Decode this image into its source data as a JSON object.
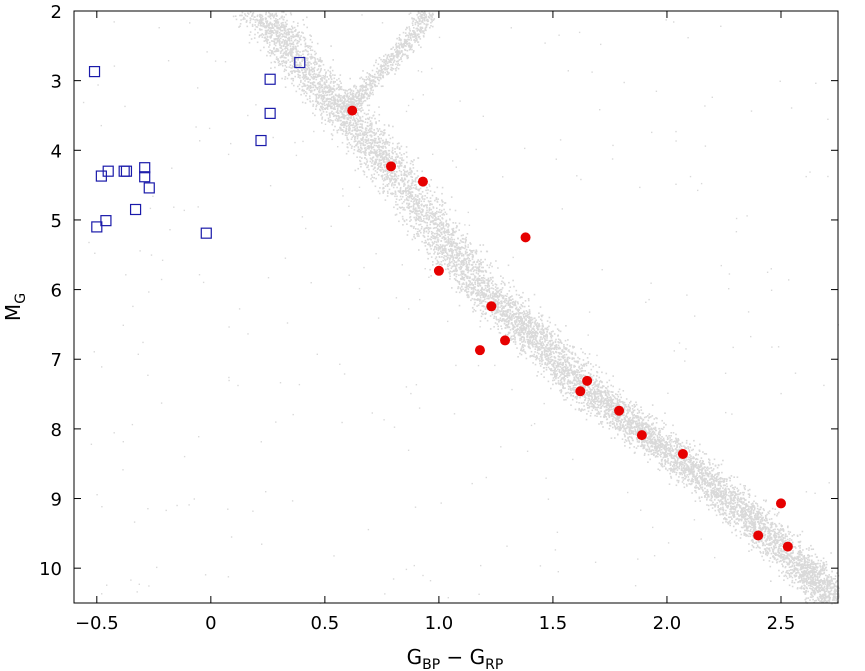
{
  "chart_data": {
    "type": "scatter",
    "xlabel": "G",
    "xlabel_sub_1": "BP",
    "xlabel_mid": " − G",
    "xlabel_sub_2": "RP",
    "ylabel": "M",
    "ylabel_sub": "G",
    "xlim": [
      -0.6,
      2.75
    ],
    "ylim": [
      10.5,
      2.0
    ],
    "y_inverted": true,
    "x_ticks": [
      {
        "value": -0.5,
        "label": "−0.5"
      },
      {
        "value": 0,
        "label": "0"
      },
      {
        "value": 0.5,
        "label": "0.5"
      },
      {
        "value": 1.0,
        "label": "1.0"
      },
      {
        "value": 1.5,
        "label": "1.5"
      },
      {
        "value": 2.0,
        "label": "2.0"
      },
      {
        "value": 2.5,
        "label": "2.5"
      }
    ],
    "y_ticks": [
      {
        "value": 2,
        "label": "2"
      },
      {
        "value": 3,
        "label": "3"
      },
      {
        "value": 4,
        "label": "4"
      },
      {
        "value": 5,
        "label": "5"
      },
      {
        "value": 6,
        "label": "6"
      },
      {
        "value": 7,
        "label": "7"
      },
      {
        "value": 8,
        "label": "8"
      },
      {
        "value": 9,
        "label": "9"
      },
      {
        "value": 10,
        "label": "10"
      }
    ],
    "grid": false,
    "background_sequence": {
      "color": "#d9d9d9",
      "main_sequence_path": [
        [
          0.22,
          2.0
        ],
        [
          0.4,
          2.8
        ],
        [
          0.6,
          3.5
        ],
        [
          0.8,
          4.3
        ],
        [
          1.0,
          5.2
        ],
        [
          1.2,
          6.0
        ],
        [
          1.4,
          6.6
        ],
        [
          1.6,
          7.3
        ],
        [
          1.8,
          7.8
        ],
        [
          2.0,
          8.3
        ],
        [
          2.2,
          8.8
        ],
        [
          2.4,
          9.4
        ],
        [
          2.6,
          10.0
        ],
        [
          2.75,
          10.5
        ]
      ],
      "giant_branch_path": [
        [
          0.95,
          2.0
        ],
        [
          0.85,
          2.5
        ],
        [
          0.7,
          3.0
        ],
        [
          0.6,
          3.4
        ]
      ]
    },
    "series": [
      {
        "marker": "open-square",
        "color": "#1a1aaa",
        "points": [
          {
            "x": -0.51,
            "y": 2.87
          },
          {
            "x": 0.26,
            "y": 2.98
          },
          {
            "x": 0.39,
            "y": 2.74
          },
          {
            "x": 0.26,
            "y": 3.47
          },
          {
            "x": 0.22,
            "y": 3.86
          },
          {
            "x": -0.29,
            "y": 4.25
          },
          {
            "x": -0.37,
            "y": 4.3
          },
          {
            "x": -0.38,
            "y": 4.3
          },
          {
            "x": -0.45,
            "y": 4.3
          },
          {
            "x": -0.48,
            "y": 4.37
          },
          {
            "x": -0.29,
            "y": 4.38
          },
          {
            "x": -0.27,
            "y": 4.54
          },
          {
            "x": -0.33,
            "y": 4.85
          },
          {
            "x": -0.46,
            "y": 5.01
          },
          {
            "x": -0.5,
            "y": 5.1
          },
          {
            "x": -0.02,
            "y": 5.19
          }
        ]
      },
      {
        "marker": "filled-circle",
        "color": "#e60000",
        "points": [
          {
            "x": 0.62,
            "y": 3.43
          },
          {
            "x": 0.79,
            "y": 4.23
          },
          {
            "x": 0.93,
            "y": 4.45
          },
          {
            "x": 1.38,
            "y": 5.25
          },
          {
            "x": 1.0,
            "y": 5.73
          },
          {
            "x": 1.23,
            "y": 6.24
          },
          {
            "x": 1.29,
            "y": 6.73
          },
          {
            "x": 1.18,
            "y": 6.87
          },
          {
            "x": 1.65,
            "y": 7.31
          },
          {
            "x": 1.62,
            "y": 7.46
          },
          {
            "x": 1.79,
            "y": 7.74
          },
          {
            "x": 1.89,
            "y": 8.09
          },
          {
            "x": 2.07,
            "y": 8.36
          },
          {
            "x": 2.5,
            "y": 9.07
          },
          {
            "x": 2.4,
            "y": 9.53
          },
          {
            "x": 2.53,
            "y": 9.69
          }
        ]
      }
    ]
  }
}
